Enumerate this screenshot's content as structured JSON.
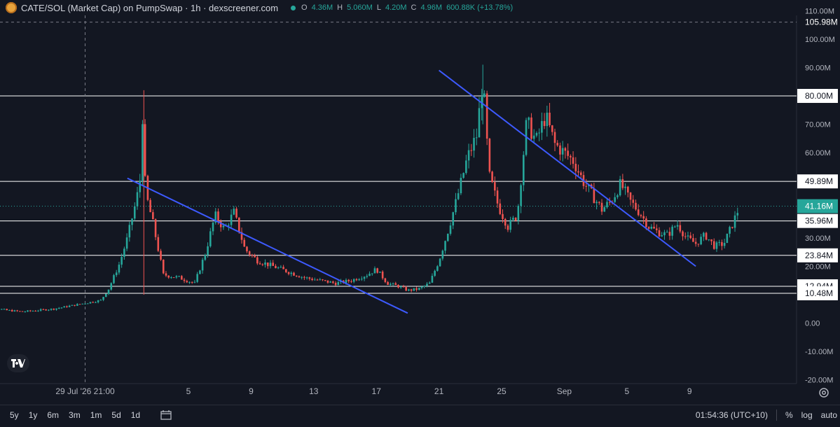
{
  "header": {
    "title": "CATE/SOL (Market Cap) on PumpSwap · 1h · dexscreener.com",
    "open_label": "O",
    "open_value": "4.36M",
    "high_label": "H",
    "high_value": "5.060M",
    "low_label": "L",
    "low_value": "4.20M",
    "close_label": "C",
    "close_value": "4.96M",
    "change": "600.88K (+13.78%)"
  },
  "chart_data": {
    "type": "candlestick",
    "title": "CATE/SOL (Market Cap) on PumpSwap · 1h · dexscreener.com",
    "y_unit": "M",
    "ylim": [
      -20,
      110
    ],
    "y_ticks": [
      "110.00M",
      "100.00M",
      "90.00M",
      "80.00M",
      "70.00M",
      "60.00M",
      "50.00M",
      "40.00M",
      "30.00M",
      "20.00M",
      "10.00M",
      "0.00",
      "-10.00M",
      "-20.00M"
    ],
    "x_ticks": [
      {
        "label": "29 Jul '26  21:00",
        "day": 0.0
      },
      {
        "label": "5",
        "day": 6.6
      },
      {
        "label": "9",
        "day": 10.6
      },
      {
        "label": "13",
        "day": 14.6
      },
      {
        "label": "17",
        "day": 18.6
      },
      {
        "label": "21",
        "day": 22.6
      },
      {
        "label": "25",
        "day": 26.6
      },
      {
        "label": "Sep",
        "day": 30.6
      },
      {
        "label": "5",
        "day": 34.6
      },
      {
        "label": "9",
        "day": 38.6
      }
    ],
    "crosshair_day": 0.0,
    "crosshair_price": 105.98,
    "price_levels": [
      {
        "value": 105.98,
        "label": "105.98M",
        "style": "dashed"
      },
      {
        "value": 80.0,
        "label": "80.00M",
        "style": "solid"
      },
      {
        "value": 49.89,
        "label": "49.89M",
        "style": "solid"
      },
      {
        "value": 41.16,
        "label": "41.16M",
        "style": "current"
      },
      {
        "value": 35.96,
        "label": "35.96M",
        "style": "solid"
      },
      {
        "value": 23.84,
        "label": "23.84M",
        "style": "solid"
      },
      {
        "value": 12.94,
        "label": "12.94M",
        "style": "solid"
      },
      {
        "value": 10.48,
        "label": "10.48M",
        "style": "solid"
      }
    ],
    "trend_lines": [
      {
        "from": [
          2.7,
          51.0
        ],
        "to": [
          20.6,
          3.5
        ]
      },
      {
        "from": [
          22.6,
          89.0
        ],
        "to": [
          39.0,
          20.0
        ]
      }
    ],
    "close_series": [
      {
        "day": -7.0,
        "value": 0.5
      },
      {
        "day": -6.6,
        "value": 8.5
      },
      {
        "day": -6.0,
        "value": 5.5
      },
      {
        "day": -5.0,
        "value": 4.5
      },
      {
        "day": -4.0,
        "value": 4.0
      },
      {
        "day": -3.0,
        "value": 4.5
      },
      {
        "day": -2.0,
        "value": 5.0
      },
      {
        "day": -1.0,
        "value": 6.0
      },
      {
        "day": 0.0,
        "value": 7.0
      },
      {
        "day": 1.0,
        "value": 8.0
      },
      {
        "day": 1.5,
        "value": 12.0
      },
      {
        "day": 2.2,
        "value": 21.0
      },
      {
        "day": 2.7,
        "value": 30.0
      },
      {
        "day": 3.3,
        "value": 44.0
      },
      {
        "day": 3.55,
        "value": 52.0
      },
      {
        "day": 3.7,
        "value": 79.0
      },
      {
        "day": 3.85,
        "value": 46.0
      },
      {
        "day": 4.3,
        "value": 36.0
      },
      {
        "day": 5.0,
        "value": 17.0
      },
      {
        "day": 6.0,
        "value": 16.0
      },
      {
        "day": 7.0,
        "value": 14.0
      },
      {
        "day": 7.7,
        "value": 25.0
      },
      {
        "day": 8.3,
        "value": 38.0
      },
      {
        "day": 8.9,
        "value": 33.0
      },
      {
        "day": 9.5,
        "value": 39.0
      },
      {
        "day": 10.2,
        "value": 26.0
      },
      {
        "day": 11.0,
        "value": 22.0
      },
      {
        "day": 12.0,
        "value": 20.0
      },
      {
        "day": 13.0,
        "value": 18.0
      },
      {
        "day": 14.0,
        "value": 16.0
      },
      {
        "day": 15.0,
        "value": 15.0
      },
      {
        "day": 16.0,
        "value": 14.0
      },
      {
        "day": 17.0,
        "value": 15.0
      },
      {
        "day": 18.0,
        "value": 17.0
      },
      {
        "day": 18.6,
        "value": 19.0
      },
      {
        "day": 19.3,
        "value": 14.0
      },
      {
        "day": 20.0,
        "value": 13.0
      },
      {
        "day": 20.6,
        "value": 11.5
      },
      {
        "day": 21.3,
        "value": 12.0
      },
      {
        "day": 22.0,
        "value": 14.0
      },
      {
        "day": 22.6,
        "value": 22.0
      },
      {
        "day": 23.2,
        "value": 33.0
      },
      {
        "day": 23.8,
        "value": 45.0
      },
      {
        "day": 24.4,
        "value": 58.0
      },
      {
        "day": 25.0,
        "value": 66.0
      },
      {
        "day": 25.4,
        "value": 86.0
      },
      {
        "day": 25.8,
        "value": 52.0
      },
      {
        "day": 26.4,
        "value": 41.0
      },
      {
        "day": 27.0,
        "value": 34.0
      },
      {
        "day": 27.6,
        "value": 38.0
      },
      {
        "day": 28.2,
        "value": 71.0
      },
      {
        "day": 28.8,
        "value": 64.0
      },
      {
        "day": 29.4,
        "value": 73.0
      },
      {
        "day": 30.0,
        "value": 63.0
      },
      {
        "day": 30.6,
        "value": 60.0
      },
      {
        "day": 31.2,
        "value": 57.0
      },
      {
        "day": 31.8,
        "value": 50.0
      },
      {
        "day": 32.4,
        "value": 45.0
      },
      {
        "day": 33.0,
        "value": 40.0
      },
      {
        "day": 33.6,
        "value": 43.0
      },
      {
        "day": 34.2,
        "value": 49.0
      },
      {
        "day": 34.8,
        "value": 43.0
      },
      {
        "day": 35.4,
        "value": 39.0
      },
      {
        "day": 36.0,
        "value": 34.0
      },
      {
        "day": 36.6,
        "value": 32.0
      },
      {
        "day": 37.2,
        "value": 31.0
      },
      {
        "day": 37.8,
        "value": 35.0
      },
      {
        "day": 38.4,
        "value": 30.0
      },
      {
        "day": 39.0,
        "value": 28.0
      },
      {
        "day": 39.6,
        "value": 31.0
      },
      {
        "day": 40.2,
        "value": 27.0
      },
      {
        "day": 40.8,
        "value": 28.0
      },
      {
        "day": 41.2,
        "value": 33.0
      },
      {
        "day": 41.5,
        "value": 37.0
      },
      {
        "day": 41.8,
        "value": 41.16
      }
    ]
  },
  "bottom_bar": {
    "ranges": [
      "5y",
      "1y",
      "6m",
      "3m",
      "1m",
      "5d",
      "1d"
    ],
    "calendar_icon": "calendar-goto-icon",
    "time": "01:54:36 (UTC+10)",
    "percent": "%",
    "log": "log",
    "auto": "auto"
  },
  "icons": {
    "settings": "gear-icon",
    "logo": "tradingview-logo"
  },
  "colors": {
    "background": "#131722",
    "up": "#26a69a",
    "down": "#ef5350",
    "trend": "#3d5afe",
    "level": "#ffffff",
    "current_price": "#26a69a",
    "label_bg": "#ffffff",
    "label_text": "#131722"
  }
}
